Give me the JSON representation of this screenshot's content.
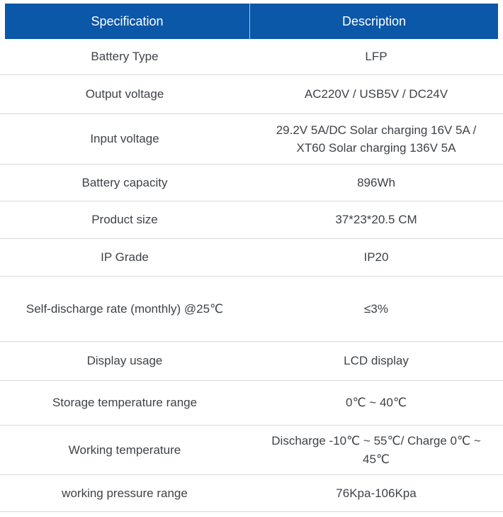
{
  "table": {
    "headers": {
      "spec": "Specification",
      "desc": "Description"
    },
    "rows": [
      {
        "spec": "Battery Type",
        "desc": "LFP"
      },
      {
        "spec": "Output voltage",
        "desc": "AC220V / USB5V / DC24V"
      },
      {
        "spec": "Input voltage",
        "desc": "29.2V 5A/DC Solar charging 16V 5A / XT60 Solar charging 136V 5A"
      },
      {
        "spec": "Battery capacity",
        "desc": "896Wh"
      },
      {
        "spec": "Product size",
        "desc": "37*23*20.5 CM"
      },
      {
        "spec": "IP Grade",
        "desc": "IP20"
      },
      {
        "spec": "Self-discharge rate (monthly) @25℃",
        "desc": "≤3%"
      },
      {
        "spec": "Display usage",
        "desc": "LCD display"
      },
      {
        "spec": "Storage temperature range",
        "desc": "0℃ ~ 40℃"
      },
      {
        "spec": "Working temperature",
        "desc": "Discharge -10℃ ~ 55℃/ Charge 0℃ ~ 45℃"
      },
      {
        "spec": "working pressure range",
        "desc": "76Kpa-106Kpa"
      }
    ],
    "colors": {
      "header_bg": "#0b57a8",
      "header_text": "#ffffff",
      "body_text": "#3e4247",
      "divider": "#d8d8d8"
    }
  }
}
